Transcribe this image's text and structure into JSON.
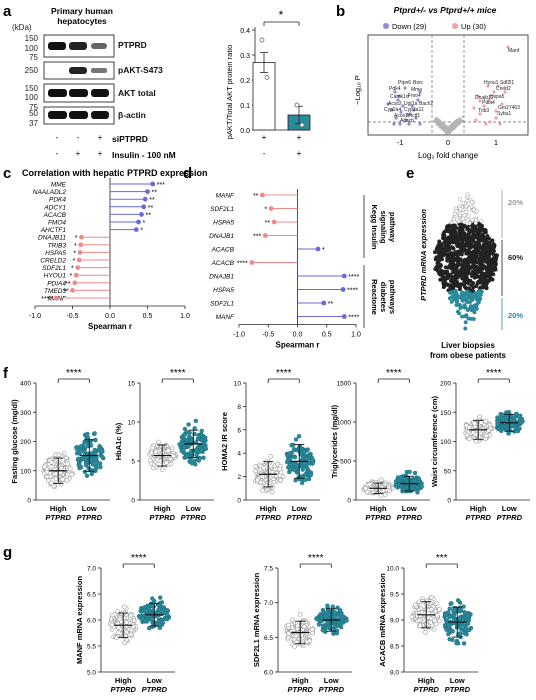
{
  "colors": {
    "teal": "#2a8a9c",
    "pink": "#f08a8a",
    "blue": "#6a6ad6",
    "gray": "#b4b4b4",
    "dark": "#222222"
  },
  "panel_a": {
    "letter": "a",
    "kda": "(kDa)",
    "cell_label": [
      "Primary human",
      "hepatocytes"
    ],
    "ladder": [
      "150",
      "100",
      "75",
      "250",
      "150",
      "100",
      "75",
      "50",
      "37"
    ],
    "bands": [
      "PTPRD",
      "pAKT-S473",
      "AKT total",
      "β-actin"
    ],
    "treat_rows": [
      {
        "label": "siPTPRD",
        "signs": [
          "-",
          "-",
          "+"
        ]
      },
      {
        "label": "Insulin - 100 nM",
        "signs": [
          "-",
          "+",
          "+"
        ]
      }
    ]
  },
  "panel_b": {
    "letter": "b",
    "title": "Ptprd+/- vs Ptprd+/+ mice",
    "legend": [
      {
        "label": "Down (29)",
        "color": "#8c8cd8"
      },
      {
        "label": "Up (30)",
        "color": "#f4a0a0"
      }
    ],
    "xlabel": "Log₂ fold change",
    "ylabel": "−Log₁₀ P",
    "xticks": [
      "-1",
      "0",
      "1"
    ],
    "gene_labels": [
      "Manf",
      "Hyou1",
      "Sdf2l1",
      "Creld2",
      "Ptpn6",
      "Bsrc",
      "Pdk4",
      "Mme",
      "Camk1d",
      "Acss2",
      "Ugt1a",
      "Bach2",
      "Cyp2a4",
      "Cyp3a11",
      "Acox1",
      "Acacb",
      "Dnajb11",
      "Hspa5",
      "Pdia4",
      "Gm27463",
      "Trib3",
      "Sybu1",
      "Fmo4",
      "Ahctf1"
    ]
  },
  "panel_c": {
    "letter": "c",
    "title": "Correlation with hepatic PTPRD expression",
    "xlabel": "Spearman r",
    "xticks": [
      "-1.0",
      "-0.5",
      "0.0",
      "0.5",
      "1.0"
    ]
  },
  "panel_d": {
    "letter": "d",
    "xlabel": "Spearman r",
    "xticks": [
      "-1.0",
      "-0.5",
      "0.0",
      "0.5",
      "1.0"
    ],
    "group1": [
      "Kegg Insulin",
      "signaling",
      "pathway"
    ],
    "group2": [
      "Reactome",
      "diabetes",
      "pathways"
    ]
  },
  "panel_e": {
    "letter": "e",
    "ylabel": "PTPRD mRNA expression",
    "xlabel": [
      "Liver biopsies",
      "from obese patients"
    ],
    "pcts": [
      "20%",
      "60%",
      "20%"
    ]
  },
  "panel_f": {
    "letter": "f",
    "group_labels": [
      [
        "High",
        "PTPRD"
      ],
      [
        "Low",
        "PTPRD"
      ]
    ],
    "plots": [
      {
        "ylabel": "Fasting glucose (mg/dl)",
        "yticks": [
          "0",
          "100",
          "200",
          "300",
          "400"
        ],
        "sig": "****"
      },
      {
        "ylabel": "HbA1c (%)",
        "yticks": [
          "0",
          "5",
          "10",
          "15"
        ],
        "sig": "****"
      },
      {
        "ylabel": "HOMA2 IR score",
        "yticks": [
          "0",
          "2",
          "4",
          "6",
          "8",
          "10"
        ],
        "sig": "****"
      },
      {
        "ylabel": "Triglycerides (mg/dl)",
        "yticks": [
          "0",
          "500",
          "1000",
          "1500"
        ],
        "sig": "****"
      },
      {
        "ylabel": "Waist circumference (cm)",
        "yticks": [
          "0",
          "50",
          "100",
          "150",
          "200"
        ],
        "sig": "****"
      }
    ]
  },
  "panel_g": {
    "letter": "g",
    "group_labels": [
      [
        "High",
        "PTPRD"
      ],
      [
        "Low",
        "PTPRD"
      ]
    ],
    "plots": [
      {
        "ylabel": "MANF mRNA expression",
        "yticks": [
          "5.0",
          "5.5",
          "6.0",
          "6.5",
          "7.0"
        ],
        "sig": "****"
      },
      {
        "ylabel": "SDF2L1 mRNA expression",
        "yticks": [
          "6.0",
          "6.5",
          "7.0",
          "7.5"
        ],
        "sig": "****"
      },
      {
        "ylabel": "ACACB mRNA expression",
        "yticks": [
          "8.0",
          "8.5",
          "9.0",
          "9.5",
          "10.0"
        ],
        "sig": "***"
      }
    ]
  },
  "chart_data": [
    {
      "type": "bar",
      "panel": "a",
      "categories": [
        "Insulin",
        "Insulin + siPTPRD"
      ],
      "signs": [
        [
          "+",
          "+"
        ],
        [
          "-",
          "+"
        ]
      ],
      "values": [
        0.27,
        0.06
      ],
      "errors": [
        0.04,
        0.035
      ],
      "points": [
        [
          0.36,
          0.21
        ],
        [
          0.1,
          0.02
        ]
      ],
      "ylabel": "pAKT/Total AKT protein ratio",
      "yticks": [
        "0.0",
        "0.1",
        "0.2",
        "0.3",
        "0.4"
      ],
      "ylim": [
        0,
        0.4
      ],
      "sig": "*"
    },
    {
      "type": "bar",
      "panel": "c",
      "orientation": "horizontal",
      "categories": [
        "MME",
        "NAALADL2",
        "PDK4",
        "ADCY1",
        "ACACB",
        "FMO4",
        "AHCTF1",
        "DNAJB11",
        "TRIB3",
        "HSPA5",
        "CRELD2",
        "SDF2L1",
        "HYOU1",
        "PDIA4",
        "TMED3",
        "MANF"
      ],
      "values": [
        0.57,
        0.5,
        0.47,
        0.45,
        0.42,
        0.38,
        0.35,
        -0.38,
        -0.39,
        -0.4,
        -0.41,
        -0.43,
        -0.45,
        -0.47,
        -0.5,
        -0.72
      ],
      "sig": [
        "***",
        "**",
        "**",
        "**",
        "**",
        "*",
        "*",
        "*",
        "*",
        "*",
        "*",
        "*",
        "*",
        "**",
        "**",
        "****"
      ],
      "xlabel": "Spearman r",
      "xlim": [
        -1,
        1
      ]
    },
    {
      "type": "bar",
      "panel": "d",
      "orientation": "horizontal",
      "categories": [
        "MANF",
        "SDF2L1",
        "HSPA5",
        "DNAJB1",
        "ACACB",
        "ACACB",
        "DNAJB1",
        "HSPA5",
        "SDF2L1",
        "MANF"
      ],
      "values": [
        -0.6,
        -0.45,
        -0.4,
        -0.55,
        0.35,
        -0.78,
        0.8,
        0.78,
        0.45,
        0.8
      ],
      "sig": [
        "**",
        "*",
        "**",
        "***",
        "*",
        "****",
        "****",
        "****",
        "**",
        "****"
      ],
      "xlabel": "Spearman r",
      "xlim": [
        -1,
        1
      ]
    }
  ]
}
